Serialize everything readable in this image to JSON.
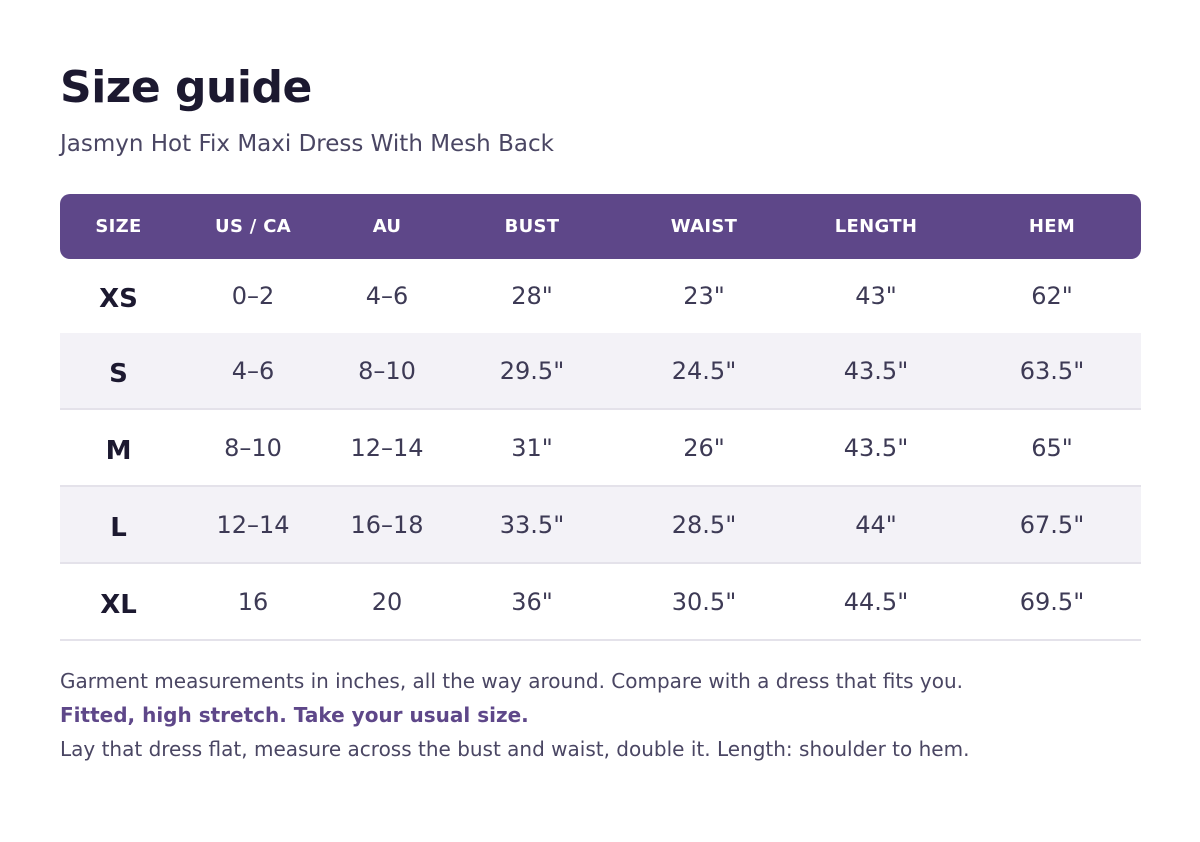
{
  "header": {
    "title": "Size guide",
    "subtitle": "Jasmyn Hot Fix Maxi Dress With Mesh Back"
  },
  "table": {
    "columns": [
      "SIZE",
      "US / CA",
      "AU",
      "BUST",
      "WAIST",
      "LENGTH",
      "HEM"
    ],
    "rows": [
      [
        "XS",
        "0–2",
        "4–6",
        "28\"",
        "23\"",
        "43\"",
        "62\""
      ],
      [
        "S",
        "4–6",
        "8–10",
        "29.5\"",
        "24.5\"",
        "43.5\"",
        "63.5\""
      ],
      [
        "M",
        "8–10",
        "12–14",
        "31\"",
        "26\"",
        "43.5\"",
        "65\""
      ],
      [
        "L",
        "12–14",
        "16–18",
        "33.5\"",
        "28.5\"",
        "44\"",
        "67.5\""
      ],
      [
        "XL",
        "16",
        "20",
        "36\"",
        "30.5\"",
        "44.5\"",
        "69.5\""
      ]
    ]
  },
  "notes": {
    "line1": "Garment measurements in inches, all the way around. Compare with a dress that fits you.",
    "line2": "Fitted, high stretch. Take your usual size.",
    "line3": "Lay that dress flat, measure across the bust and waist, double it.  Length: shoulder to hem."
  },
  "colors": {
    "header_bg": "#5e4789",
    "accent_text": "#5e4789",
    "alt_row_bg": "#f3f2f7",
    "title_text": "#1c1930"
  }
}
